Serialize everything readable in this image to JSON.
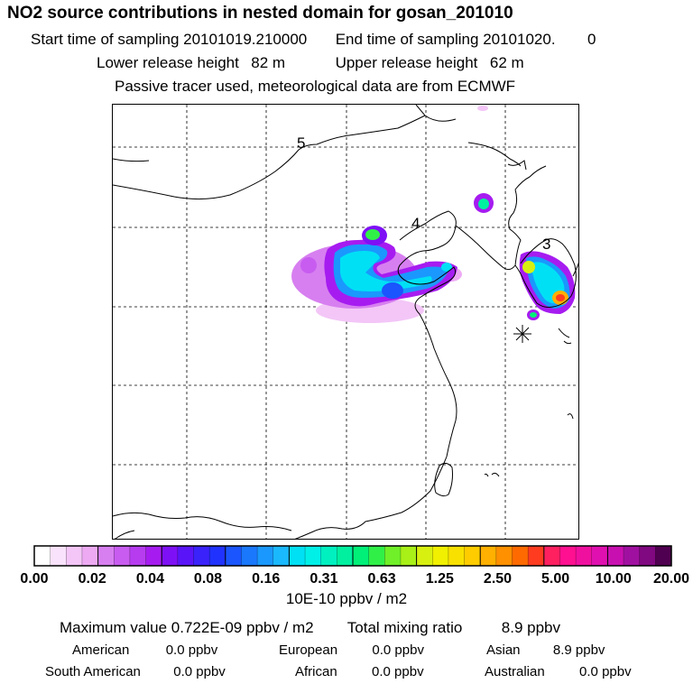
{
  "header": {
    "title": "NO2 source contributions in nested domain for gosan_201010",
    "start_label": "Start time of sampling",
    "start_value": "20101019.210000",
    "end_label": "End time of sampling",
    "end_value": "20101020.",
    "end_value2": "0",
    "lower_label": "Lower release height",
    "lower_value": "82 m",
    "upper_label": "Upper release height",
    "upper_value": "62 m",
    "note": "Passive tracer used, meteorological data are from ECMWF"
  },
  "map_labels": [
    "5",
    "4",
    "3"
  ],
  "colorbar": {
    "tick_labels": [
      "0.00",
      "0.02",
      "0.04",
      "0.08",
      "0.16",
      "0.31",
      "0.63",
      "1.25",
      "2.50",
      "5.00",
      "10.00",
      "20.00"
    ],
    "colors": [
      "#ffffff",
      "#f9e2fb",
      "#f3c6f7",
      "#edaaf3",
      "#d77ff0",
      "#c85cf0",
      "#b73cf0",
      "#a61cf0",
      "#7e10f5",
      "#5a14f8",
      "#3a22fb",
      "#2032fd",
      "#1a55fd",
      "#1a78fd",
      "#1a98fd",
      "#1ab8fd",
      "#00e0f5",
      "#00f0e8",
      "#00f0c0",
      "#00f0a0",
      "#00f078",
      "#30f048",
      "#70f028",
      "#a8f018",
      "#d8f010",
      "#f0f000",
      "#f8e000",
      "#ffcc00",
      "#ffb000",
      "#ff9000",
      "#ff6a00",
      "#ff3c20",
      "#ff2060",
      "#ff1090",
      "#f010a0",
      "#e010b0",
      "#c810b0",
      "#a010a0",
      "#800880",
      "#500050"
    ],
    "unit": "10E-10 ppbv / m2"
  },
  "summary": {
    "max_label": "Maximum value",
    "max_value": "0.722E-09 ppbv / m2",
    "total_label": "Total mixing ratio",
    "total_value": "8.9 ppbv",
    "regions": [
      {
        "name": "American",
        "value": "0.0 ppbv"
      },
      {
        "name": "European",
        "value": "0.0 ppbv"
      },
      {
        "name": "Asian",
        "value": "8.9 ppbv"
      },
      {
        "name": "South American",
        "value": "0.0 ppbv"
      },
      {
        "name": "African",
        "value": "0.0 ppbv"
      },
      {
        "name": "Australian",
        "value": "0.0 ppbv"
      }
    ]
  },
  "chart_data": {
    "type": "heatmap",
    "title": "NO2 source contributions in nested domain for gosan_201010",
    "colorbar_ticks": [
      0.0,
      0.02,
      0.04,
      0.08,
      0.16,
      0.31,
      0.63,
      1.25,
      2.5,
      5.0,
      10.0,
      20.0
    ],
    "colorbar_unit": "10E-10 ppbv / m2",
    "grid": true,
    "legend": "bottom",
    "maximum_value": "0.722E-09 ppbv / m2",
    "total_mixing_ratio": "8.9 ppbv",
    "receptor": "gosan"
  }
}
